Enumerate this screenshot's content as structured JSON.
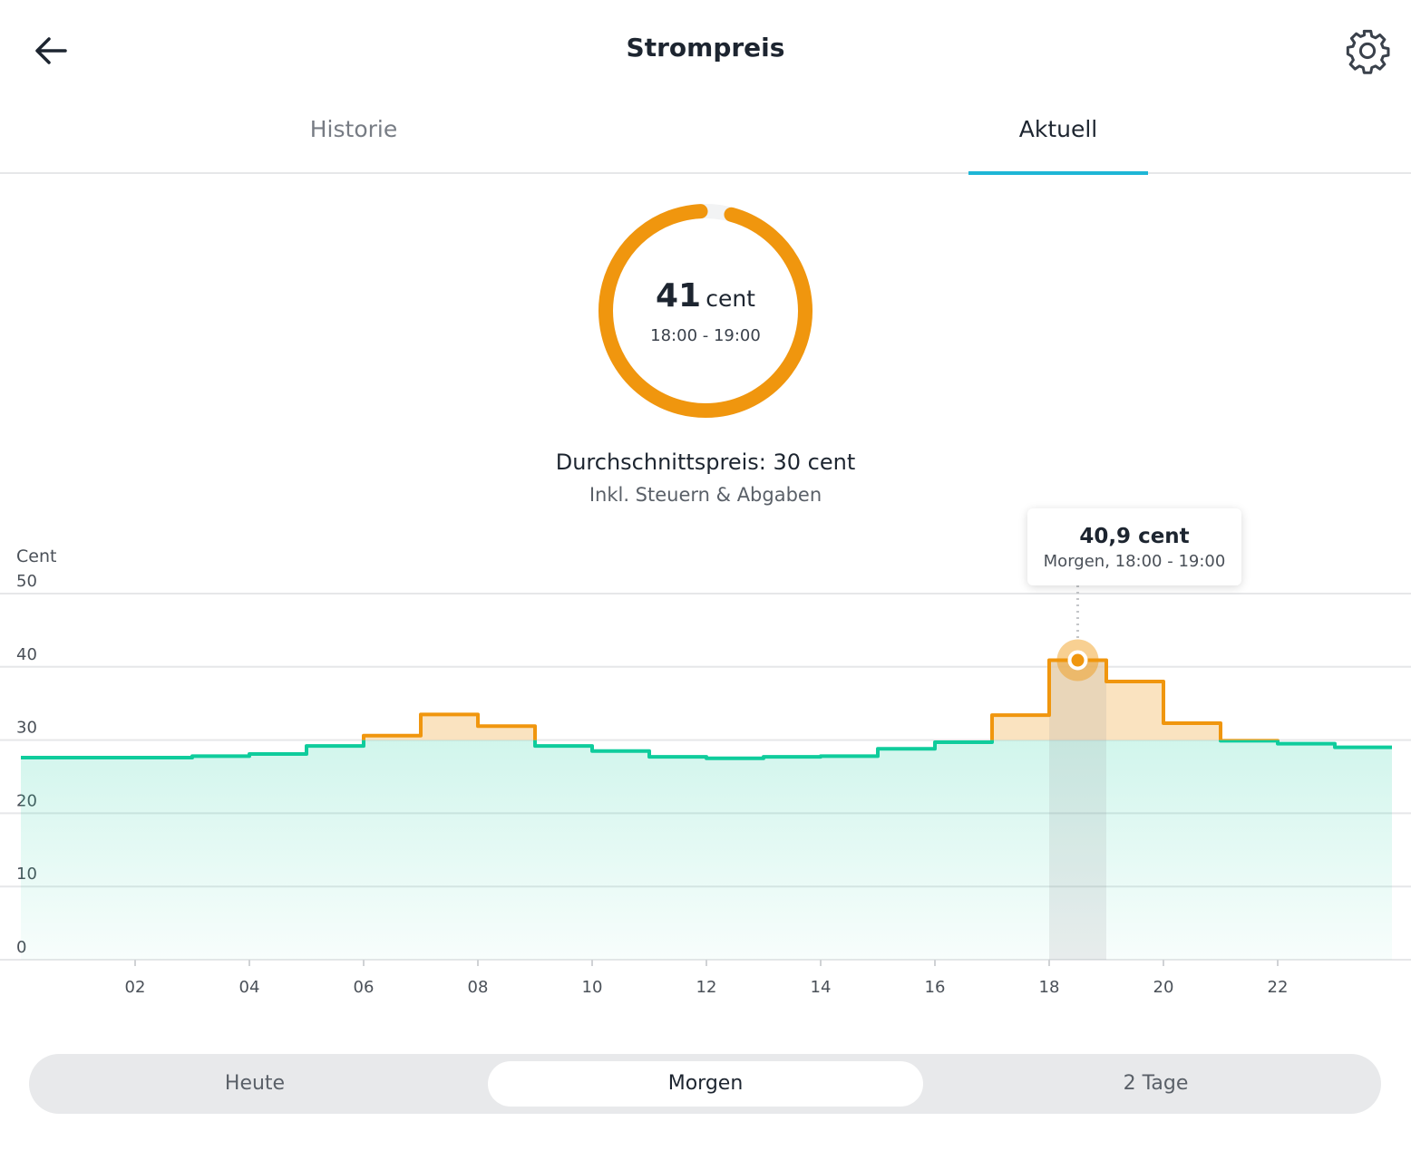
{
  "header": {
    "title": "Strompreis",
    "back_icon": "arrow-left-icon",
    "settings_icon": "gear-icon"
  },
  "tabs": [
    {
      "label": "Historie",
      "active": false
    },
    {
      "label": "Aktuell",
      "active": true
    }
  ],
  "current": {
    "value": "41",
    "unit": "cent",
    "time": "18:00 - 19:00",
    "ring_fill": 0.95,
    "ring_color": "#f0960e"
  },
  "average": {
    "label": "Durchschnittspreis: 30 cent",
    "note": "Inkl. Steuern & Abgaben"
  },
  "tooltip": {
    "value": "40,9 cent",
    "label": "Morgen, 18:00 - 19:00"
  },
  "segments": [
    {
      "label": "Heute",
      "selected": false
    },
    {
      "label": "Morgen",
      "selected": true
    },
    {
      "label": "2 Tage",
      "selected": false
    }
  ],
  "chart_data": {
    "type": "area",
    "step": true,
    "ylabel": "Cent",
    "ylim": [
      0,
      50
    ],
    "yticks": [
      "0",
      "10",
      "20",
      "30",
      "40",
      "50"
    ],
    "xticks": [
      "02",
      "04",
      "06",
      "08",
      "10",
      "12",
      "14",
      "16",
      "18",
      "20",
      "22"
    ],
    "x_hours": [
      0,
      1,
      2,
      3,
      4,
      5,
      6,
      7,
      8,
      9,
      10,
      11,
      12,
      13,
      14,
      15,
      16,
      17,
      18,
      19,
      20,
      21,
      22,
      23
    ],
    "values": [
      27.6,
      27.6,
      27.6,
      27.8,
      28.1,
      29.2,
      30.6,
      33.5,
      31.9,
      29.2,
      28.5,
      27.7,
      27.5,
      27.7,
      27.8,
      28.8,
      29.7,
      33.4,
      40.9,
      38.0,
      32.3,
      29.9,
      29.5,
      29.0
    ],
    "threshold": 30,
    "selected_hour": 18,
    "colors": {
      "below": "#0fcc9c",
      "above": "#f0960e"
    },
    "grid": true
  }
}
